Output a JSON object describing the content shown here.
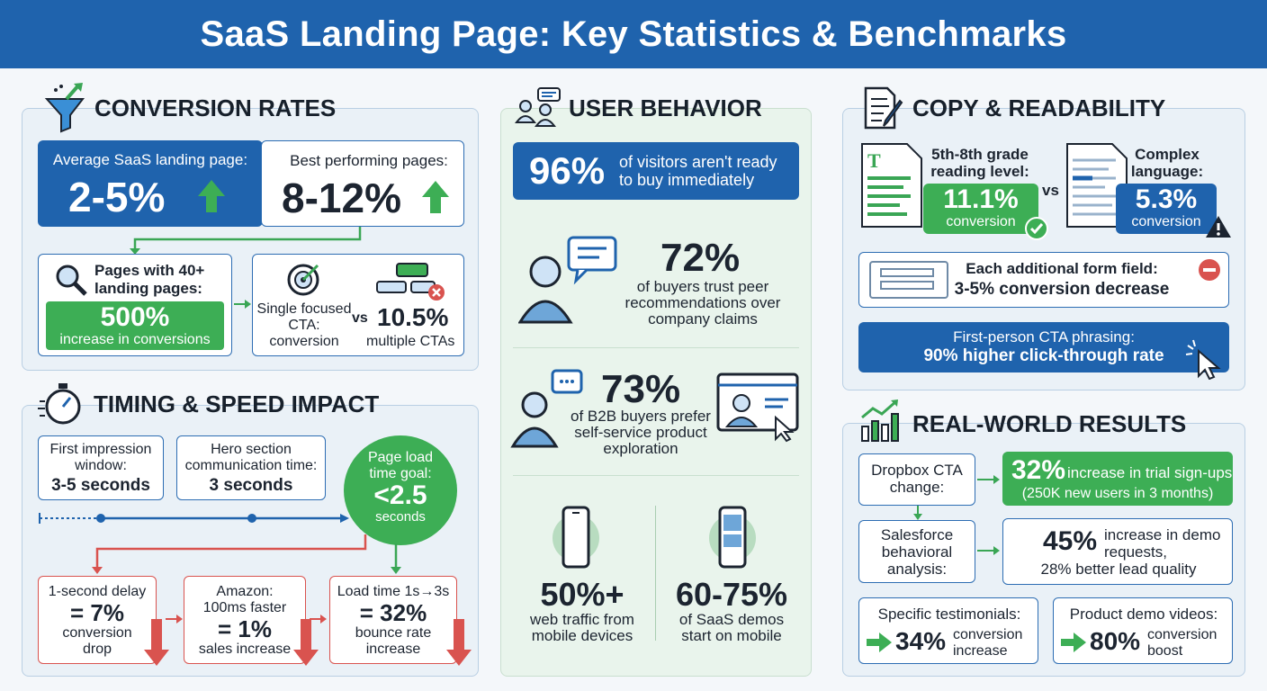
{
  "title": "SaaS Landing Page: Key Statistics & Benchmarks",
  "conversion": {
    "heading": "CONVERSION RATES",
    "avg_label": "Average SaaS landing page:",
    "avg_value": "2-5%",
    "best_label": "Best performing pages:",
    "best_value": "8-12%",
    "pages40_label": "Pages with 40+ landing pages:",
    "pages40_value": "500%",
    "pages40_sub": "increase in conversions",
    "single_cta_label": "Single focused CTA: conversion",
    "vs": "vs",
    "multi_value": "10.5%",
    "multi_label": "multiple CTAs"
  },
  "timing": {
    "heading": "TIMING & SPEED IMPACT",
    "first_label": "First impression window:",
    "first_value": "3-5 seconds",
    "hero_label": "Hero section communication time:",
    "hero_value": "3 seconds",
    "goal_label": "Page load time goal:",
    "goal_value": "<2.5",
    "goal_unit": "seconds",
    "delay_label": "1-second delay",
    "delay_value": "= 7%",
    "delay_sub": "conversion drop",
    "amazon_label": "Amazon: 100ms faster",
    "amazon_value": "= 1%",
    "amazon_sub": "sales increase",
    "load_label": "Load time 1s→3s",
    "load_value": "= 32%",
    "load_sub": "bounce rate increase"
  },
  "behavior": {
    "heading": "USER BEHAVIOR",
    "v96_value": "96%",
    "v96_label": "of visitors aren't ready to buy immediately",
    "v72_value": "72%",
    "v72_label": "of buyers trust peer recommendations over company claims",
    "v73_value": "73%",
    "v73_label": "of B2B buyers prefer self-service product exploration",
    "v50_value": "50%+",
    "v50_label": "web traffic from mobile devices",
    "v60_value": "60-75%",
    "v60_label": "of SaaS demos start on mobile"
  },
  "copy": {
    "heading": "COPY & READABILITY",
    "grade_label": "5th-8th grade reading level:",
    "grade_value": "11.1%",
    "grade_sub": "conversion",
    "vs": "vs",
    "complex_label": "Complex language:",
    "complex_value": "5.3%",
    "complex_sub": "conversion",
    "form_label": "Each additional form field:",
    "form_value": "3-5% conversion decrease",
    "first_person_label": "First-person CTA phrasing:",
    "first_person_value": "90% higher click-through rate"
  },
  "results": {
    "heading": "REAL-WORLD RESULTS",
    "dropbox_label": "Dropbox CTA change:",
    "dropbox_value": "32%",
    "dropbox_text": "increase in trial sign-ups",
    "dropbox_sub": "(250K new users in 3 months)",
    "salesforce_label": "Salesforce behavioral analysis:",
    "salesforce_value": "45%",
    "salesforce_text": "increase in demo requests,",
    "salesforce_sub": "28% better lead quality",
    "testimonials_label": "Specific testimonials:",
    "testimonials_value": "34%",
    "testimonials_text": "conversion increase",
    "videos_label": "Product demo videos:",
    "videos_value": "80%",
    "videos_text": "conversion boost"
  },
  "colors": {
    "brand_blue": "#1f63ad",
    "green": "#3dae55",
    "red": "#d9534f"
  }
}
